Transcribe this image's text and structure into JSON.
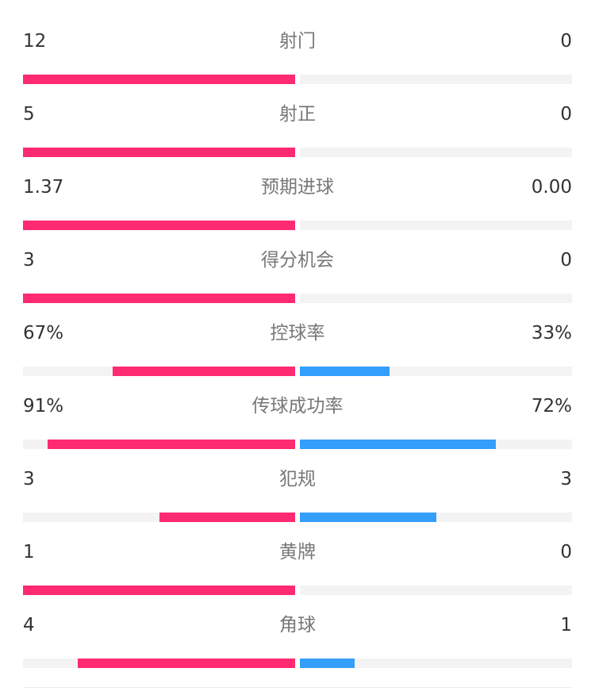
{
  "colors": {
    "home": "#fe2a72",
    "away": "#349ffa",
    "track": "#f3f3f3"
  },
  "chart_data": {
    "type": "bar",
    "categories": [
      "射门",
      "射正",
      "预期进球",
      "得分机会",
      "控球率",
      "传球成功率",
      "犯规",
      "黄牌",
      "角球"
    ],
    "series": [
      {
        "values": [
          "12",
          "5",
          "1.37",
          "3",
          "67%",
          "91%",
          "3",
          "1",
          "4"
        ],
        "fill": [
          1,
          1,
          1,
          1,
          0.67,
          0.91,
          0.5,
          1,
          0.8
        ]
      },
      {
        "values": [
          "0",
          "0",
          "0.00",
          "0",
          "33%",
          "72%",
          "3",
          "0",
          "1"
        ],
        "fill": [
          0,
          0,
          0,
          0,
          0.33,
          0.72,
          0.5,
          0,
          0.2
        ]
      }
    ]
  }
}
